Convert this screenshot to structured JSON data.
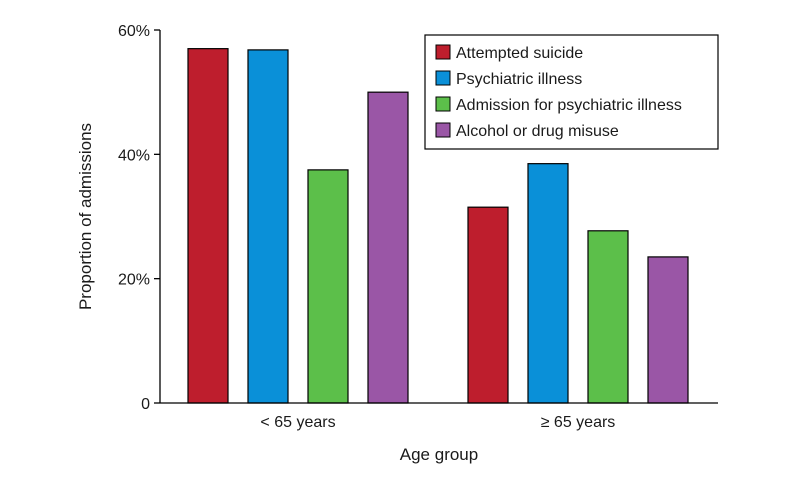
{
  "chart_data": {
    "type": "bar",
    "title": "",
    "xlabel": "Age group",
    "ylabel": "Proportion of admissions",
    "categories": [
      "< 65 years",
      "≥ 65 years"
    ],
    "series": [
      {
        "name": "Attempted suicide",
        "values": [
          57,
          31.5
        ],
        "color": "#be1e2d"
      },
      {
        "name": "Psychiatric illness",
        "values": [
          56.8,
          38.5
        ],
        "color": "#0a90d8"
      },
      {
        "name": "Admission for psychiatric illness",
        "values": [
          37.5,
          27.7
        ],
        "color": "#5cbf4a"
      },
      {
        "name": "Alcohol or drug misuse",
        "values": [
          50,
          23.5
        ],
        "color": "#9a56a6"
      }
    ],
    "ylim": [
      0,
      60
    ],
    "yticks": [
      0,
      20,
      40,
      60
    ],
    "ytick_labels": [
      "0",
      "20%",
      "40%",
      "60%"
    ],
    "grid": false,
    "legend_position": "top-right"
  }
}
